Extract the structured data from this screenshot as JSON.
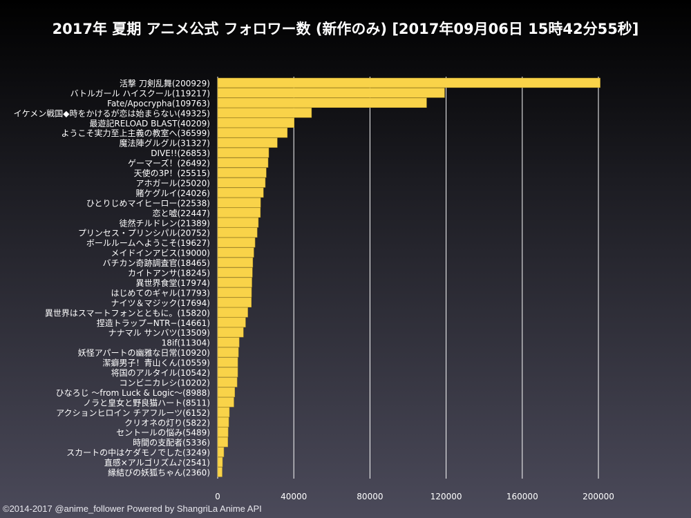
{
  "chart_data": {
    "type": "bar",
    "orientation": "horizontal",
    "title": "2017年 夏期 アニメ公式 フォロワー数 (新作のみ) [2017年09月06日 15時42分55秒]",
    "categories": [
      "活撃 刀剣乱舞(200929)",
      "バトルガール ハイスクール(119217)",
      "Fate/Apocrypha(109763)",
      "イケメン戦国◆時をかけるが恋は始まらない(49325)",
      "最遊記RELOAD BLAST(40209)",
      "ようこそ実力至上主義の教室へ(36599)",
      "魔法陣グルグル(31327)",
      "DIVE!!(26853)",
      "ゲーマーズ！(26492)",
      "天使の3P！(25515)",
      "アホガール(25020)",
      "賭ケグルイ(24026)",
      "ひとりじめマイヒーロー(22538)",
      "恋と嘘(22447)",
      "徒然チルドレン(21389)",
      "プリンセス・プリンシパル(20752)",
      "ボールルームへようこそ(19627)",
      "メイドインアビス(19000)",
      "バチカン奇跡調査官(18465)",
      "カイトアンサ(18245)",
      "異世界食堂(17974)",
      "はじめてのギャル(17793)",
      "ナイツ＆マジック(17694)",
      "異世界はスマートフォンとともに。(15820)",
      "捏造トラップ−NTR−(14661)",
      "ナナマル サンバツ(13509)",
      "18if(11304)",
      "妖怪アパートの幽雅な日常(10920)",
      "潔癖男子！青山くん(10559)",
      "将国のアルタイル(10542)",
      "コンビニカレシ(10202)",
      "ひなろじ 〜from Luck & Logic〜(8988)",
      "ノラと皇女と野良猫ハート(8511)",
      "アクションヒロイン チアフルーツ(6152)",
      "クリオネの灯り(5822)",
      "セントールの悩み(5489)",
      "時間の支配者(5336)",
      "スカートの中はケダモノでした(3249)",
      "直感×アルゴリズム♪(2541)",
      "縁結びの妖狐ちゃん(2360)"
    ],
    "values": [
      200929,
      119217,
      109763,
      49325,
      40209,
      36599,
      31327,
      26853,
      26492,
      25515,
      25020,
      24026,
      22538,
      22447,
      21389,
      20752,
      19627,
      19000,
      18465,
      18245,
      17974,
      17793,
      17694,
      15820,
      14661,
      13509,
      11304,
      10920,
      10559,
      10542,
      10202,
      8988,
      8511,
      6152,
      5822,
      5489,
      5336,
      3249,
      2541,
      2360
    ],
    "xlim": [
      0,
      200000
    ],
    "xticks": [
      "0",
      "40000",
      "80000",
      "120000",
      "160000",
      "200000"
    ],
    "grid": true,
    "bar_color": "#f9d349",
    "grid_color": "#ffffff"
  },
  "footer": "©2014-2017 @anime_follower Powered by ShangriLa Anime API"
}
